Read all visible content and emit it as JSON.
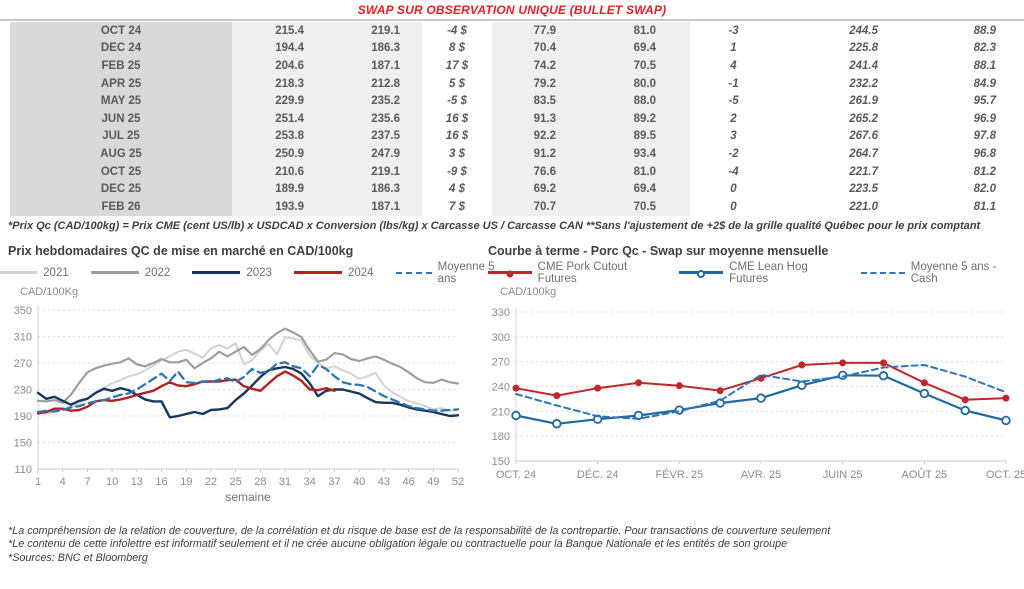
{
  "page": {
    "title": "SWAP SUR OBSERVATION UNIQUE (BULLET SWAP)"
  },
  "colors": {
    "title_red": "#ec1c24",
    "positive_green": "#18a544",
    "negative_red": "#e02b20",
    "blue_value": "#21618c",
    "label_col_bg": "#d9d9d9",
    "num_col_bg": "#efefef",
    "series_2021": "#d2d2d2",
    "series_2022": "#9e9e9e",
    "series_2023": "#17375e",
    "series_2024": "#b22222",
    "series_moyenne": "#2e75b6",
    "pork_red": "#c0272d",
    "hog_blue": "#2268a2",
    "cash_dash_blue": "#2e75b6"
  },
  "table": {
    "rows": [
      {
        "month": "OCT 24",
        "v1": "215.4",
        "v2": "219.1",
        "d1": "-4 $",
        "d1c": "neg",
        "v3": "77.9",
        "v4": "81.0",
        "d2": "-3",
        "d2c": "neg",
        "b1": "244.5",
        "b2": "88.9"
      },
      {
        "month": "DEC 24",
        "v1": "194.4",
        "v2": "186.3",
        "d1": "8 $",
        "d1c": "pos",
        "v3": "70.4",
        "v4": "69.4",
        "d2": "1",
        "d2c": "pos",
        "b1": "225.8",
        "b2": "82.3"
      },
      {
        "month": "FEB 25",
        "v1": "204.6",
        "v2": "187.1",
        "d1": "17 $",
        "d1c": "pos",
        "v3": "74.2",
        "v4": "70.5",
        "d2": "4",
        "d2c": "pos",
        "b1": "241.4",
        "b2": "88.1"
      },
      {
        "month": "APR 25",
        "v1": "218.3",
        "v2": "212.8",
        "d1": "5 $",
        "d1c": "pos",
        "v3": "79.2",
        "v4": "80.0",
        "d2": "-1",
        "d2c": "neg",
        "b1": "232.2",
        "b2": "84.9"
      },
      {
        "month": "MAY 25",
        "v1": "229.9",
        "v2": "235.2",
        "d1": "-5 $",
        "d1c": "neg",
        "v3": "83.5",
        "v4": "88.0",
        "d2": "-5",
        "d2c": "neg",
        "b1": "261.9",
        "b2": "95.7"
      },
      {
        "month": "JUN 25",
        "v1": "251.4",
        "v2": "235.6",
        "d1": "16 $",
        "d1c": "pos",
        "v3": "91.3",
        "v4": "89.2",
        "d2": "2",
        "d2c": "pos",
        "b1": "265.2",
        "b2": "96.9"
      },
      {
        "month": "JUL 25",
        "v1": "253.8",
        "v2": "237.5",
        "d1": "16 $",
        "d1c": "pos",
        "v3": "92.2",
        "v4": "89.5",
        "d2": "3",
        "d2c": "pos",
        "b1": "267.6",
        "b2": "97.8"
      },
      {
        "month": "AUG 25",
        "v1": "250.9",
        "v2": "247.9",
        "d1": "3 $",
        "d1c": "pos",
        "v3": "91.2",
        "v4": "93.4",
        "d2": "-2",
        "d2c": "neg",
        "b1": "264.7",
        "b2": "96.8"
      },
      {
        "month": "OCT 25",
        "v1": "210.6",
        "v2": "219.1",
        "d1": "-9 $",
        "d1c": "neg",
        "v3": "76.6",
        "v4": "81.0",
        "d2": "-4",
        "d2c": "neg",
        "b1": "221.7",
        "b2": "81.2"
      },
      {
        "month": "DEC 25",
        "v1": "189.9",
        "v2": "186.3",
        "d1": "4 $",
        "d1c": "pos",
        "v3": "69.2",
        "v4": "69.4",
        "d2": "0",
        "d2c": "neg",
        "b1": "223.5",
        "b2": "82.0"
      },
      {
        "month": "FEB 26",
        "v1": "193.9",
        "v2": "187.1",
        "d1": "7 $",
        "d1c": "pos",
        "v3": "70.7",
        "v4": "70.5",
        "d2": "0",
        "d2c": "pos",
        "b1": "221.0",
        "b2": "81.1"
      }
    ],
    "footnote": "*Prix Qc (CAD/100kg) = Prix CME (cent US/lb) x USDCAD x Conversion (lbs/kg) x Carcasse US / Carcasse CAN **Sans l'ajustement de +2$ de la grille qualité Québec pour le prix comptant"
  },
  "charts": {
    "left_title": "Prix hebdomadaires QC de mise en marché en CAD/100kg",
    "right_title": "Courbe à terme - Porc Qc - Swap sur moyenne mensuelle",
    "left_unit": "CAD/100Kg",
    "right_unit": "CAD/100kg"
  },
  "chart_data": [
    {
      "type": "line",
      "title": "Prix hebdomadaires QC de mise en marché en CAD/100kg",
      "xlabel": "semaine",
      "ylabel": "CAD/100Kg",
      "ylim": [
        110,
        350
      ],
      "ytick_step": 40,
      "xlim": [
        1,
        52
      ],
      "xticks": [
        {
          "x": 1,
          "label": "1"
        },
        {
          "x": 4,
          "label": "4"
        },
        {
          "x": 7,
          "label": "7"
        },
        {
          "x": 10,
          "label": "10"
        },
        {
          "x": 13,
          "label": "13"
        },
        {
          "x": 16,
          "label": "16"
        },
        {
          "x": 19,
          "label": "19"
        },
        {
          "x": 22,
          "label": "22"
        },
        {
          "x": 25,
          "label": "25"
        },
        {
          "x": 28,
          "label": "28"
        },
        {
          "x": 31,
          "label": "31"
        },
        {
          "x": 34,
          "label": "34"
        },
        {
          "x": 37,
          "label": "37"
        },
        {
          "x": 40,
          "label": "40"
        },
        {
          "x": 43,
          "label": "43"
        },
        {
          "x": 46,
          "label": "46"
        },
        {
          "x": 49,
          "label": "49"
        },
        {
          "x": 52,
          "label": "52"
        }
      ],
      "grid": true,
      "legend_position": "top",
      "series": [
        {
          "name": "2021",
          "color": "#d2d2d2",
          "width": 2,
          "dash": null,
          "marker": null,
          "values": [
            196,
            193,
            196,
            199,
            204,
            209,
            217,
            224,
            233,
            239,
            244,
            250,
            253,
            259,
            266,
            274,
            280,
            287,
            290,
            284,
            278,
            292,
            297,
            292,
            300,
            268,
            274,
            289,
            299,
            283,
            309,
            307,
            304,
            281,
            270,
            262,
            265,
            259,
            254,
            246,
            250,
            255,
            236,
            226,
            219,
            212,
            209,
            205,
            200,
            202,
            198,
            200
          ]
        },
        {
          "name": "2022",
          "color": "#9e9e9e",
          "width": 2.2,
          "dash": null,
          "marker": null,
          "values": [
            213,
            212,
            214,
            210,
            222,
            240,
            256,
            262,
            266,
            269,
            271,
            277,
            268,
            265,
            270,
            276,
            271,
            271,
            275,
            262,
            270,
            277,
            287,
            280,
            287,
            294,
            282,
            291,
            305,
            315,
            322,
            316,
            309,
            289,
            272,
            275,
            285,
            283,
            276,
            273,
            277,
            280,
            275,
            269,
            264,
            256,
            247,
            241,
            240,
            245,
            241,
            239
          ]
        },
        {
          "name": "2023",
          "color": "#17375e",
          "width": 2.4,
          "dash": null,
          "marker": null,
          "values": [
            225,
            216,
            219,
            213,
            207,
            213,
            216,
            225,
            231,
            228,
            232,
            229,
            222,
            215,
            212,
            212,
            188,
            190,
            193,
            196,
            193,
            199,
            200,
            202,
            214,
            224,
            236,
            249,
            259,
            262,
            264,
            261,
            254,
            239,
            220,
            228,
            230,
            230,
            227,
            224,
            217,
            211,
            210,
            210,
            207,
            203,
            200,
            198,
            196,
            193,
            190,
            191
          ]
        },
        {
          "name": "2024",
          "color": "#b22222",
          "width": 2.4,
          "dash": null,
          "marker": null,
          "values": [
            194,
            196,
            201,
            201,
            198,
            199,
            204,
            212,
            214,
            213,
            215,
            218,
            222,
            225,
            228,
            235,
            241,
            236,
            235,
            238,
            242,
            242,
            242,
            244,
            245,
            235,
            231,
            228,
            239,
            250,
            257,
            251,
            243,
            230,
            229,
            232,
            228
          ]
        },
        {
          "name": "Moyenne 5 ans",
          "color": "#2e75b6",
          "width": 2.3,
          "dash": "8,5",
          "marker": null,
          "values": [
            196,
            198,
            197,
            199,
            203,
            205,
            209,
            212,
            214,
            218,
            222,
            224,
            230,
            238,
            246,
            254,
            243,
            257,
            241,
            240,
            242,
            241,
            245,
            247,
            241,
            249,
            261,
            255,
            258,
            269,
            271,
            265,
            262,
            250,
            267,
            261,
            250,
            241,
            238,
            237,
            234,
            227,
            220,
            215,
            210,
            205,
            202,
            200,
            198,
            198,
            199,
            200
          ]
        }
      ]
    },
    {
      "type": "line",
      "title": "Courbe à terme - Porc Qc - Swap sur moyenne mensuelle",
      "xlabel": "",
      "ylabel": "CAD/100kg",
      "ylim": [
        150,
        330
      ],
      "ytick_step": 30,
      "xlim": [
        0,
        12
      ],
      "xticks": [
        {
          "x": 0,
          "label": "OCT. 24"
        },
        {
          "x": 2,
          "label": "DÉC. 24"
        },
        {
          "x": 4,
          "label": "FÉVR. 25"
        },
        {
          "x": 6,
          "label": "AVR. 25"
        },
        {
          "x": 8,
          "label": "JUIN 25"
        },
        {
          "x": 10,
          "label": "AOÛT 25"
        },
        {
          "x": 12,
          "label": "OCT. 25"
        }
      ],
      "grid": true,
      "legend_position": "top",
      "series": [
        {
          "name": "CME Pork Cutout Futures",
          "color": "#c0272d",
          "width": 2,
          "dash": null,
          "marker": "dot",
          "values": [
            238,
            229,
            238,
            244.5,
            241,
            235,
            250,
            266,
            268.5,
            268.5,
            244.5,
            224,
            226
          ]
        },
        {
          "name": "CME Lean Hog Futures",
          "color": "#2268a2",
          "width": 2.2,
          "dash": null,
          "marker": "circle",
          "values": [
            205,
            195,
            200.5,
            205,
            211.5,
            220,
            226,
            241.5,
            253.5,
            253,
            231.5,
            211,
            199
          ]
        },
        {
          "name": "Moyenne 5 ans - Cash",
          "color": "#2e75b6",
          "width": 2,
          "dash": "6,4",
          "marker": null,
          "values": [
            231,
            217,
            204,
            201,
            210,
            223,
            254,
            246,
            252,
            263,
            266,
            252,
            233
          ]
        }
      ]
    }
  ],
  "footnotes": [
    "*La compréhension de la relation de couverture, de la corrélation et du risque de base est de la responsabilité de la contrepartie. Pour transactions de couverture seulement",
    "*Le contenu de cette infolettre est informatif seulement et il ne crée aucune obligation légale ou contractuelle pour la Banque Nationale et les entités de son groupe",
    "*Sources: BNC et Bloomberg"
  ]
}
